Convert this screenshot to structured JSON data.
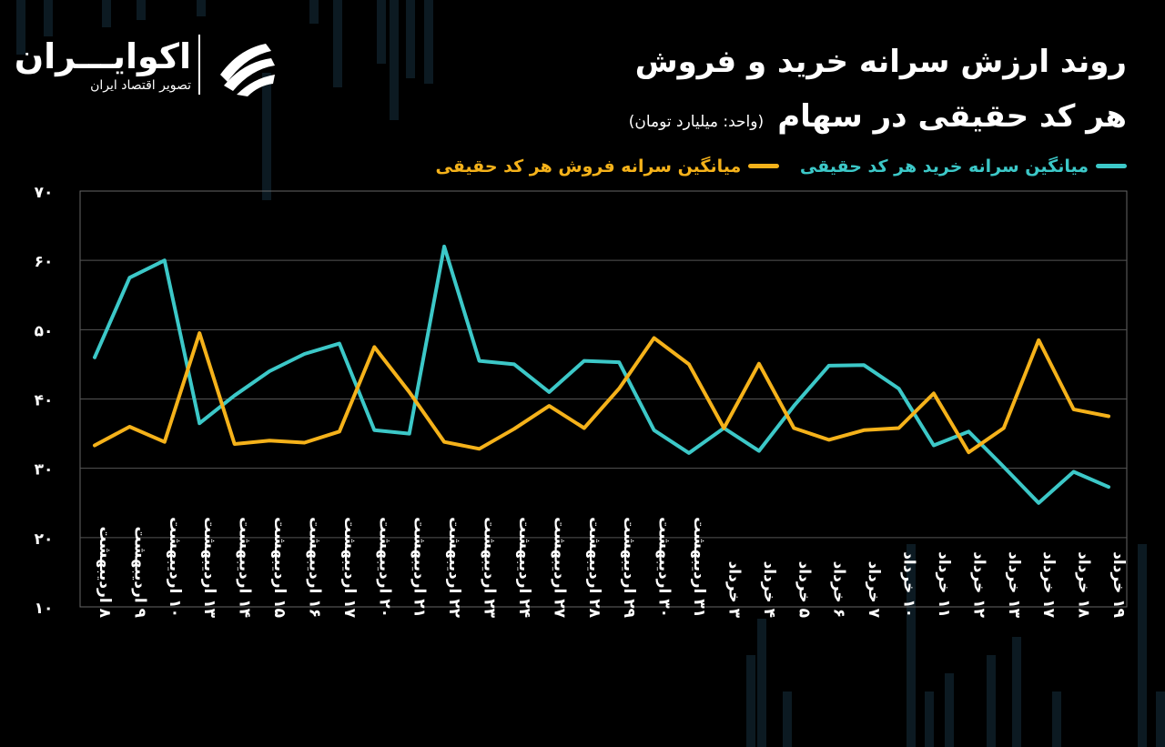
{
  "brand": {
    "name": "اکوایـــران",
    "tagline": "تصویر اقتصاد ایران"
  },
  "header": {
    "title_line1": "روند ارزش سرانه خرید و فروش",
    "title_line2": "هر کد حقیقی در سهام",
    "unit": "(واحد: میلیارد تومان)"
  },
  "colors": {
    "buy": "#3cc8c8",
    "sell": "#f5b21a",
    "grid": "#555555",
    "background": "#000000"
  },
  "chart_data": {
    "type": "line",
    "ylim": [
      10,
      70
    ],
    "y_ticks": [
      "۱۰",
      "۲۰",
      "۳۰",
      "۴۰",
      "۵۰",
      "۶۰",
      "۷۰"
    ],
    "y_tick_values": [
      10,
      20,
      30,
      40,
      50,
      60,
      70
    ],
    "grid": true,
    "legend_position": "top-right",
    "categories": [
      "۸ اردیبهشت",
      "۹ اردیبهشت",
      "۱۰ اردیبهشت",
      "۱۳ اردیبهشت",
      "۱۴ اردیبهشت",
      "۱۵ اردیبهشت",
      "۱۶ اردیبهشت",
      "۱۷ اردیبهشت",
      "۲۰ اردیبهشت",
      "۲۱ اردیبهشت",
      "۲۲ اردیبهشت",
      "۲۳ اردیبهشت",
      "۲۴ اردیبهشت",
      "۲۷ اردیبهشت",
      "۲۸ اردیبهشت",
      "۲۹ اردیبهشت",
      "۳۰ اردیبهشت",
      "۳۱ اردیبهشت",
      "۳ خرداد",
      "۴ خرداد",
      "۵ خرداد",
      "۶ خرداد",
      "۷ خرداد",
      "۱۰ خرداد",
      "۱۱ خرداد",
      "۱۲ خرداد",
      "۱۳ خرداد",
      "۱۷ خرداد",
      "۱۸ خرداد",
      "۱۹ خرداد"
    ],
    "series": [
      {
        "name": "میانگین سرانه خرید هر کد حقیقی",
        "color": "#3cc8c8",
        "values": [
          46,
          57.5,
          60,
          36.5,
          40.5,
          44,
          46.5,
          48,
          35.5,
          35,
          62,
          45.5,
          45,
          41,
          45.5,
          45.3,
          35.5,
          32.2,
          35.8,
          32.5,
          39,
          44.8,
          44.9,
          41.5,
          33.3,
          35.3,
          30.2,
          25,
          29.5,
          27.3
        ]
      },
      {
        "name": "میانگین سرانه فروش هر کد حقیقی",
        "color": "#f5b21a",
        "values": [
          33.3,
          36,
          33.8,
          49.5,
          33.5,
          34,
          33.7,
          35.3,
          47.5,
          41,
          33.8,
          32.8,
          35.7,
          39,
          35.8,
          41.5,
          48.8,
          45,
          35.8,
          45.1,
          35.8,
          34.1,
          35.5,
          35.8,
          40.8,
          32.3,
          35.8,
          48.5,
          38.5,
          37.5
        ]
      }
    ]
  }
}
